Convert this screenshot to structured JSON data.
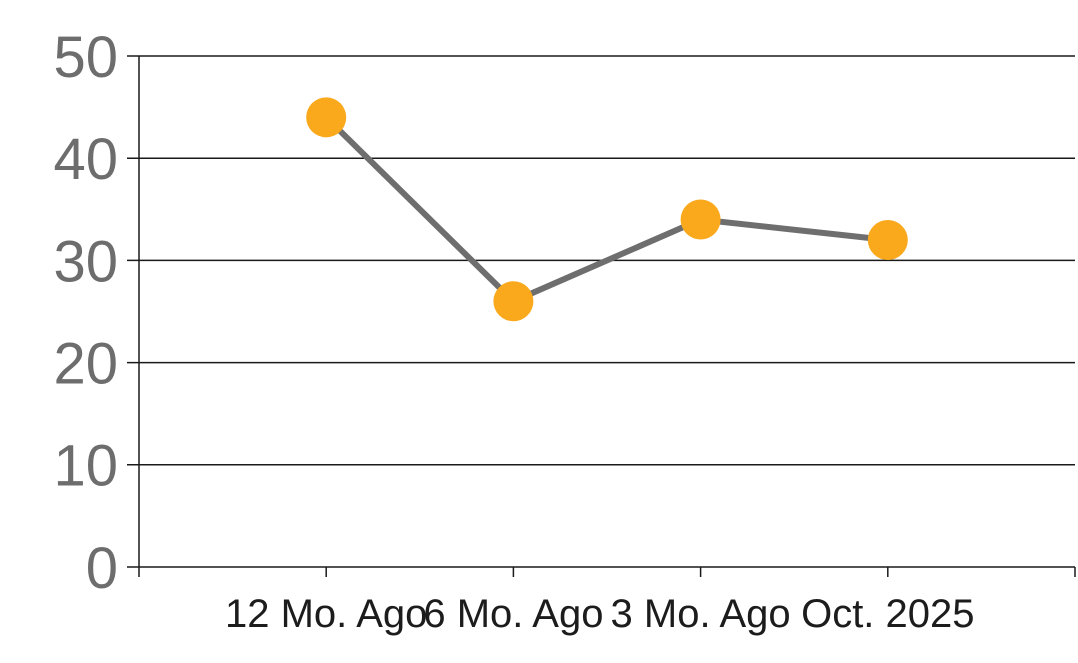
{
  "chart_data": {
    "type": "line",
    "title": "",
    "xlabel": "",
    "ylabel": "",
    "categories": [
      "12 Mo. Ago",
      "6 Mo. Ago",
      "3 Mo. Ago",
      "Oct. 2025"
    ],
    "series": [
      {
        "name": "value",
        "values": [
          44,
          26,
          34,
          32
        ]
      }
    ],
    "ylim": [
      0,
      50
    ],
    "yticks": [
      0,
      10,
      20,
      30,
      40,
      50
    ],
    "grid": true,
    "legend": false,
    "legend_position": "none",
    "colors": {
      "marker": "#F9A91B",
      "line": "#6E6E6E",
      "grid_axis": "#1A1A1A",
      "y_tick_label": "#6D6D6D",
      "x_tick_label": "#1C1C1C",
      "background": "#FFFFFF"
    }
  }
}
